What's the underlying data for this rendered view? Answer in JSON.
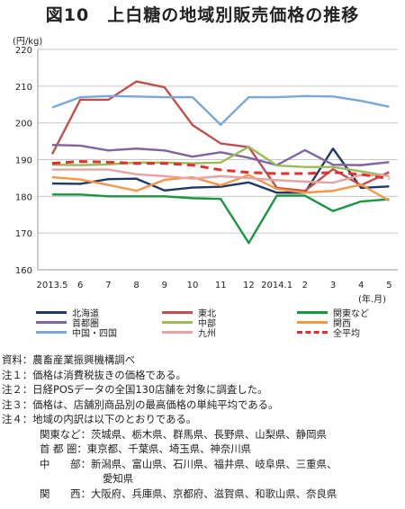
{
  "title": "図10　上白糖の地域別販売価格の推移",
  "unit_label": "(円/kg)",
  "x_unit_label": "(年.月)",
  "colors": {
    "北海道": "#1f3864",
    "東北": "#c0504d",
    "関東など": "#1a9641",
    "首都圏": "#8064a2",
    "中部": "#9bbb59",
    "関西": "#f79646",
    "中国・四国": "#7ba7d6",
    "九州": "#e6a3a3",
    "全平均": "#e03030"
  },
  "chart_data": {
    "type": "line",
    "title": "図10　上白糖の地域別販売価格の推移",
    "ylabel": "(円/kg)",
    "xlabel": "(年.月)",
    "ylim": [
      160,
      220
    ],
    "yticks": [
      160,
      170,
      180,
      190,
      200,
      210,
      220
    ],
    "grid": true,
    "legend_position": "bottom",
    "x": [
      "2013.5",
      "6",
      "7",
      "8",
      "9",
      "10",
      "11",
      "12",
      "2014.1",
      "2",
      "3",
      "4",
      "5"
    ],
    "series": [
      {
        "name": "北海道",
        "values": [
          183.5,
          183.4,
          184.7,
          184.8,
          181.6,
          182.4,
          182.6,
          183.8,
          181.0,
          181.0,
          193.0,
          182.3,
          182.7
        ]
      },
      {
        "name": "東北",
        "values": [
          191.5,
          206.3,
          206.3,
          211.3,
          209.7,
          199.4,
          194.4,
          193.4,
          182.3,
          181.5,
          187.4,
          183.0,
          186.6
        ]
      },
      {
        "name": "関東など",
        "values": [
          180.5,
          180.5,
          180.0,
          180.0,
          180.0,
          179.5,
          179.3,
          167.3,
          180.2,
          180.2,
          176.0,
          178.6,
          179.2
        ]
      },
      {
        "name": "首都圏",
        "values": [
          194.0,
          193.8,
          192.5,
          193.0,
          192.5,
          190.8,
          192.0,
          190.5,
          188.5,
          192.6,
          188.6,
          188.5,
          189.3
        ]
      },
      {
        "name": "中部",
        "values": [
          188.6,
          188.5,
          188.7,
          189.2,
          189.2,
          189.0,
          189.2,
          193.5,
          188.4,
          188.0,
          188.0,
          186.8,
          185.5
        ]
      },
      {
        "name": "関西",
        "values": [
          185.2,
          184.6,
          183.1,
          181.5,
          184.5,
          185.2,
          183.0,
          185.8,
          182.0,
          181.0,
          181.5,
          183.2,
          178.8
        ]
      },
      {
        "name": "中国・四国",
        "values": [
          204.2,
          207.0,
          207.3,
          207.2,
          207.0,
          207.0,
          199.5,
          207.0,
          207.0,
          207.3,
          207.2,
          206.0,
          204.4
        ]
      },
      {
        "name": "九州",
        "values": [
          187.3,
          187.3,
          187.3,
          186.0,
          185.5,
          184.8,
          185.5,
          185.0,
          184.4,
          184.0,
          183.7,
          185.8,
          185.6
        ]
      },
      {
        "name": "全平均",
        "values": [
          189.0,
          189.5,
          189.3,
          189.0,
          189.0,
          188.5,
          187.2,
          186.5,
          186.2,
          186.2,
          186.5,
          186.0,
          184.8
        ]
      }
    ]
  },
  "legend": [
    {
      "label": "北海道",
      "dashed": false
    },
    {
      "label": "東北",
      "dashed": false
    },
    {
      "label": "関東など",
      "dashed": false
    },
    {
      "label": "首都圏",
      "dashed": false
    },
    {
      "label": "中部",
      "dashed": false
    },
    {
      "label": "関西",
      "dashed": false
    },
    {
      "label": "中国・四国",
      "dashed": false
    },
    {
      "label": "九州",
      "dashed": false
    },
    {
      "label": "全平均",
      "dashed": true
    }
  ],
  "notes": {
    "source": "資料：農畜産業振興機構調べ",
    "note1": "注１：価格は消費税抜きの価格である。",
    "note2": "注２：日経POSデータの全国130店舗を対象に調査した。",
    "note3": "注３：価格は、店舗別商品別の最高価格の単純平均である。",
    "note4": "注４：地域の内訳は以下のとおりである。",
    "kanto": "関東など：茨城県、栃木県、群馬県、長野県、山梨県、静岡県",
    "shutoken": "首 都 圏：東京都、千葉県、埼玉県、神奈川県",
    "chubu": "中　　部：新潟県、富山県、石川県、福井県、岐阜県、三重県、",
    "chubu2": "愛知県",
    "kansai": "関　　西：大阪府、兵庫県、京都府、滋賀県、和歌山県、奈良県"
  }
}
